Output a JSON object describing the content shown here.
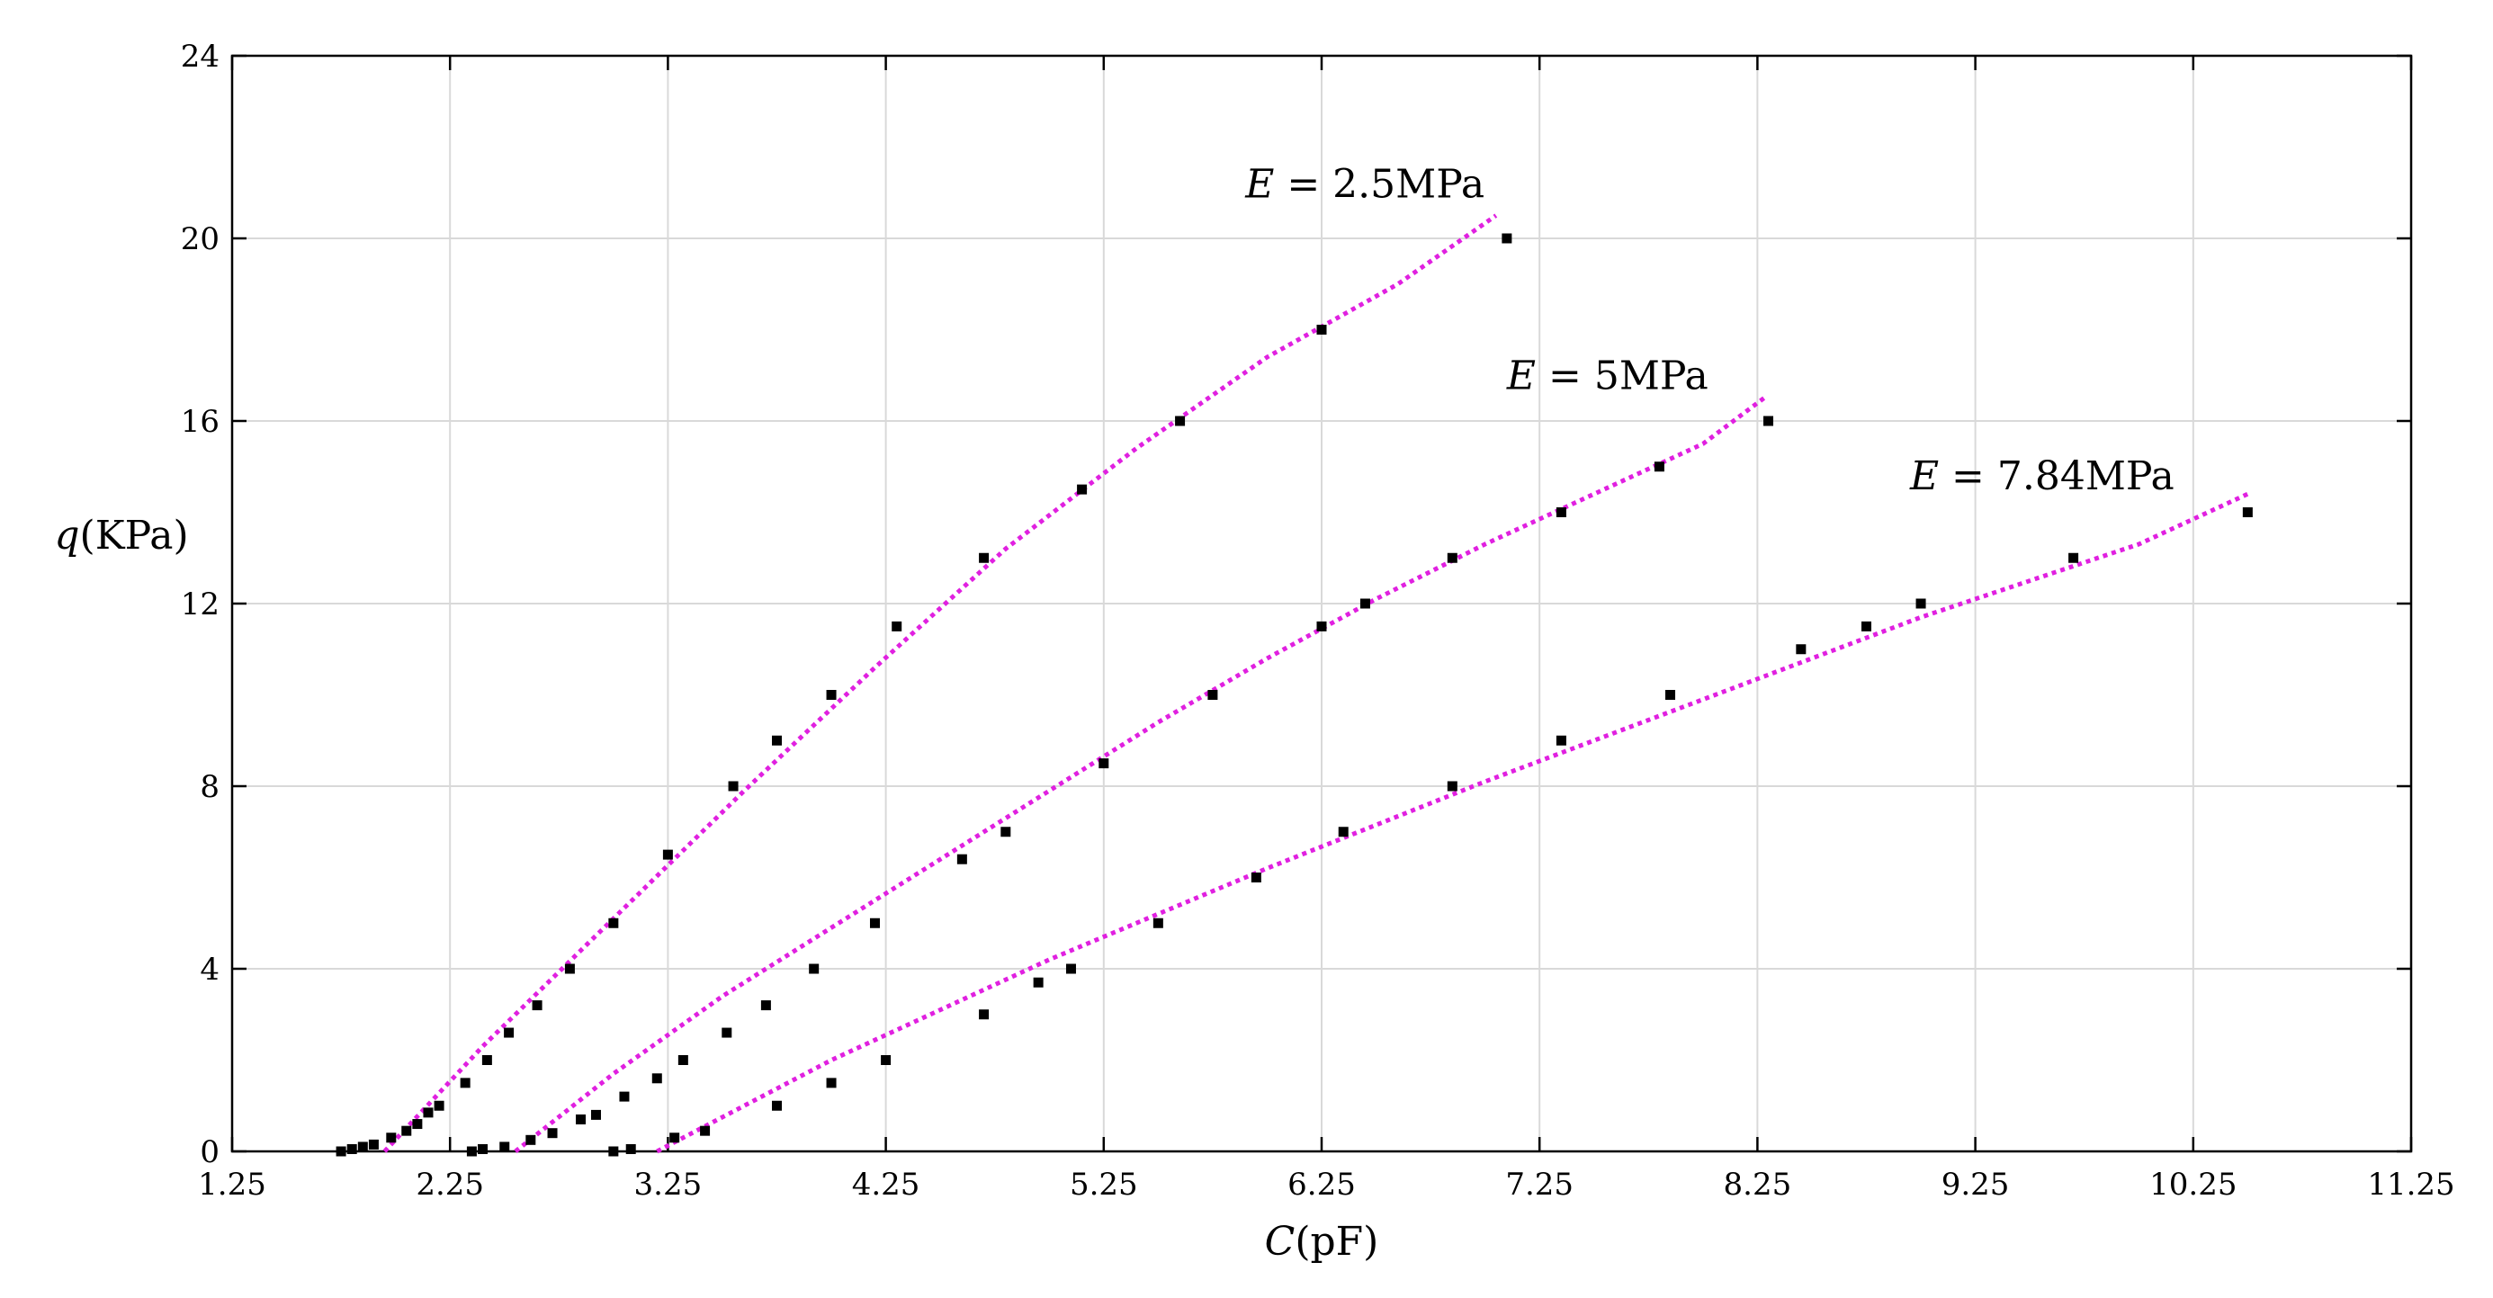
{
  "chart_data": {
    "type": "scatter",
    "title": "",
    "xlabel": {
      "var": "C",
      "unit": "(pF)"
    },
    "ylabel": {
      "var": "q",
      "unit": "(KPa)"
    },
    "xlim": [
      1.25,
      11.25
    ],
    "ylim": [
      0,
      24
    ],
    "x_ticks": [
      "1.25",
      "2.25",
      "3.25",
      "4.25",
      "5.25",
      "6.25",
      "7.25",
      "8.25",
      "9.25",
      "10.25",
      "11.25"
    ],
    "y_ticks": [
      "0",
      "4",
      "8",
      "12",
      "16",
      "20",
      "24"
    ],
    "grid": true,
    "fit_color": "#e020e0",
    "point_color": "#000000",
    "series": [
      {
        "label_var": "E",
        "label_text": " = 2.5MPa",
        "label_at": [
          5.9,
          20.9
        ],
        "fit": [
          [
            1.95,
            0.0
          ],
          [
            2.4,
            2.3
          ],
          [
            3.0,
            5.1
          ],
          [
            3.6,
            7.9
          ],
          [
            4.2,
            10.6
          ],
          [
            4.8,
            13.2
          ],
          [
            5.4,
            15.4
          ],
          [
            6.0,
            17.4
          ],
          [
            6.6,
            19.0
          ],
          [
            7.05,
            20.5
          ]
        ],
        "points": [
          [
            1.75,
            0.0
          ],
          [
            1.8,
            0.05
          ],
          [
            1.85,
            0.1
          ],
          [
            1.9,
            0.15
          ],
          [
            1.98,
            0.3
          ],
          [
            2.05,
            0.45
          ],
          [
            2.1,
            0.6
          ],
          [
            2.15,
            0.85
          ],
          [
            2.2,
            1.0
          ],
          [
            2.32,
            1.5
          ],
          [
            2.42,
            2.0
          ],
          [
            2.52,
            2.6
          ],
          [
            2.65,
            3.2
          ],
          [
            2.8,
            4.0
          ],
          [
            3.0,
            5.0
          ],
          [
            3.25,
            6.5
          ],
          [
            3.55,
            8.0
          ],
          [
            3.75,
            9.0
          ],
          [
            4.0,
            10.0
          ],
          [
            4.3,
            11.5
          ],
          [
            4.7,
            13.0
          ],
          [
            5.15,
            14.5
          ],
          [
            5.6,
            16.0
          ],
          [
            6.25,
            18.0
          ],
          [
            7.1,
            20.0
          ]
        ]
      },
      {
        "label_var": "E",
        "label_text": " = 5MPa",
        "label_at": [
          7.1,
          16.7
        ],
        "fit": [
          [
            2.55,
            0.0
          ],
          [
            3.0,
            1.7
          ],
          [
            3.5,
            3.4
          ],
          [
            4.0,
            4.9
          ],
          [
            4.5,
            6.4
          ],
          [
            5.0,
            7.9
          ],
          [
            5.5,
            9.4
          ],
          [
            6.0,
            10.8
          ],
          [
            6.5,
            12.1
          ],
          [
            7.0,
            13.3
          ],
          [
            7.5,
            14.4
          ],
          [
            8.0,
            15.5
          ],
          [
            8.28,
            16.5
          ]
        ],
        "points": [
          [
            2.35,
            0.0
          ],
          [
            2.4,
            0.05
          ],
          [
            2.5,
            0.1
          ],
          [
            2.62,
            0.25
          ],
          [
            2.72,
            0.4
          ],
          [
            2.85,
            0.7
          ],
          [
            2.92,
            0.8
          ],
          [
            3.05,
            1.2
          ],
          [
            3.2,
            1.6
          ],
          [
            3.32,
            2.0
          ],
          [
            3.52,
            2.6
          ],
          [
            3.7,
            3.2
          ],
          [
            3.92,
            4.0
          ],
          [
            4.2,
            5.0
          ],
          [
            4.6,
            6.4
          ],
          [
            4.8,
            7.0
          ],
          [
            5.25,
            8.5
          ],
          [
            5.75,
            10.0
          ],
          [
            6.25,
            11.5
          ],
          [
            6.45,
            12.0
          ],
          [
            6.85,
            13.0
          ],
          [
            7.35,
            14.0
          ],
          [
            7.8,
            15.0
          ],
          [
            8.3,
            16.0
          ]
        ]
      },
      {
        "label_var": "E",
        "label_text": " = 7.84MPa",
        "label_at": [
          8.95,
          14.5
        ],
        "fit": [
          [
            3.2,
            0.0
          ],
          [
            4.0,
            2.0
          ],
          [
            5.0,
            4.2
          ],
          [
            6.0,
            6.2
          ],
          [
            7.0,
            8.1
          ],
          [
            8.0,
            9.9
          ],
          [
            9.0,
            11.7
          ],
          [
            10.0,
            13.3
          ],
          [
            10.5,
            14.4
          ]
        ],
        "points": [
          [
            3.0,
            0.0
          ],
          [
            3.08,
            0.05
          ],
          [
            3.28,
            0.3
          ],
          [
            3.42,
            0.45
          ],
          [
            3.75,
            1.0
          ],
          [
            4.0,
            1.5
          ],
          [
            4.25,
            2.0
          ],
          [
            4.7,
            3.0
          ],
          [
            4.95,
            3.7
          ],
          [
            5.1,
            4.0
          ],
          [
            5.5,
            5.0
          ],
          [
            5.95,
            6.0
          ],
          [
            6.35,
            7.0
          ],
          [
            6.85,
            8.0
          ],
          [
            7.35,
            9.0
          ],
          [
            7.85,
            10.0
          ],
          [
            8.45,
            11.0
          ],
          [
            8.75,
            11.5
          ],
          [
            9.0,
            12.0
          ],
          [
            9.7,
            13.0
          ],
          [
            10.5,
            14.0
          ]
        ]
      }
    ]
  }
}
